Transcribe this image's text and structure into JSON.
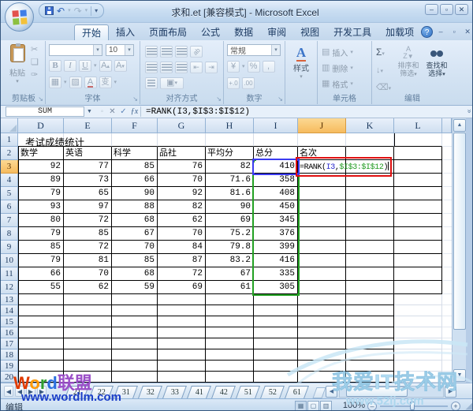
{
  "window": {
    "title": "求和.et [兼容模式] - Microsoft Excel"
  },
  "ribbon": {
    "tabs": [
      {
        "label": "开始",
        "active": true
      },
      {
        "label": "插入",
        "active": false
      },
      {
        "label": "页面布局",
        "active": false
      },
      {
        "label": "公式",
        "active": false
      },
      {
        "label": "数据",
        "active": false
      },
      {
        "label": "审阅",
        "active": false
      },
      {
        "label": "视图",
        "active": false
      },
      {
        "label": "开发工具",
        "active": false
      },
      {
        "label": "加载项",
        "active": false
      }
    ],
    "groups": {
      "clipboard": {
        "label": "剪贴板",
        "paste": "粘贴"
      },
      "font": {
        "label": "字体",
        "font_name": "",
        "font_size": "10",
        "phonetic": "变"
      },
      "alignment": {
        "label": "对齐方式"
      },
      "number": {
        "label": "数字",
        "format": "常规"
      },
      "styles": {
        "label": "样式",
        "button": "样式"
      },
      "cells": {
        "label": "单元格",
        "insert": "插入",
        "delete": "删除",
        "format": "格式"
      },
      "editing": {
        "label": "编辑",
        "sort_line1": "排序和",
        "sort_line2": "筛选",
        "find_line1": "查找和",
        "find_line2": "选择"
      }
    }
  },
  "formula_bar": {
    "name_box": "SUM",
    "formula": "=RANK(I3,$I$3:$I$12)"
  },
  "grid": {
    "columns": [
      "D",
      "E",
      "F",
      "G",
      "H",
      "I",
      "J",
      "K",
      "L"
    ],
    "highlighted_column": "J",
    "highlighted_row": 3,
    "row_count": 20,
    "title_cell": "考试成绩统计",
    "header_row": [
      "数学",
      "英语",
      "科学",
      "品社",
      "平均分",
      "总分",
      "名次"
    ],
    "data_rows": [
      [
        92,
        77,
        85,
        76,
        82,
        410
      ],
      [
        89,
        73,
        66,
        70,
        71.6,
        358
      ],
      [
        79,
        65,
        90,
        92,
        81.6,
        408
      ],
      [
        93,
        97,
        88,
        82,
        90,
        450
      ],
      [
        80,
        72,
        68,
        62,
        69,
        345
      ],
      [
        79,
        85,
        67,
        70,
        75.2,
        376
      ],
      [
        85,
        72,
        70,
        84,
        79.8,
        399
      ],
      [
        79,
        81,
        85,
        87,
        83.2,
        416
      ],
      [
        66,
        70,
        68,
        72,
        67,
        335
      ],
      [
        55,
        62,
        59,
        69,
        61,
        305
      ]
    ],
    "formula_cell": {
      "ref": "J3",
      "parts": [
        {
          "text": "=RANK(",
          "color": "#000000"
        },
        {
          "text": "I3",
          "color": "#2525cc"
        },
        {
          "text": ",",
          "color": "#000000"
        },
        {
          "text": "$I$3:$I$12",
          "color": "#1f9a1f"
        },
        {
          "text": ")",
          "color": "#000000"
        }
      ]
    },
    "reference_colors": {
      "single_ref": "#3b3bf0",
      "range_ref": "#22a022",
      "annotation": "#e01010"
    }
  },
  "sheet_tabs": {
    "tabs": [
      "21",
      "22",
      "31",
      "32",
      "33",
      "41",
      "42",
      "51",
      "52",
      "61"
    ]
  },
  "status_bar": {
    "mode": "编辑",
    "zoom": "100%"
  },
  "watermarks": {
    "left_brand_parts": [
      {
        "t": "W",
        "c": "#e03a00"
      },
      {
        "t": "o",
        "c": "#ff9800"
      },
      {
        "t": "r",
        "c": "#2f9e2f"
      },
      {
        "t": "d",
        "c": "#2b6fe0"
      },
      {
        "t": "联盟",
        "c": "#9b4fc8"
      }
    ],
    "left_url": "www.wordlm.com",
    "right_brand": "我爱IT技术网",
    "right_url": "www.52ij.com"
  }
}
